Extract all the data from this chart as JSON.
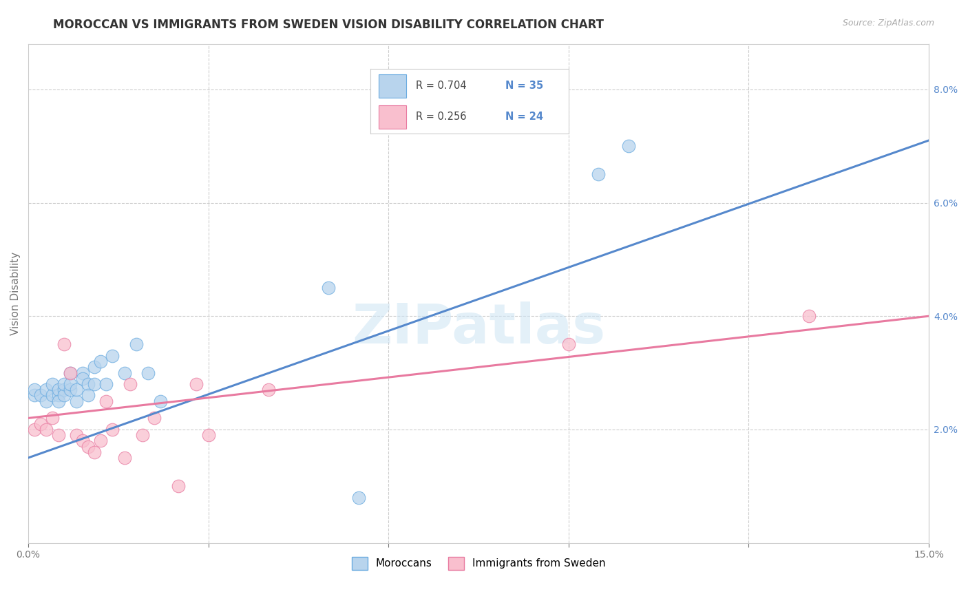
{
  "title": "MOROCCAN VS IMMIGRANTS FROM SWEDEN VISION DISABILITY CORRELATION CHART",
  "source": "Source: ZipAtlas.com",
  "ylabel": "Vision Disability",
  "xlim": [
    0.0,
    0.15
  ],
  "ylim": [
    0.0,
    0.088
  ],
  "moroccan_color": "#b8d4ed",
  "moroccan_edge": "#6aabe0",
  "sweden_color": "#f9bfce",
  "sweden_edge": "#e87aa0",
  "line_blue": "#5588cc",
  "line_pink": "#e87aa0",
  "tick_color_blue": "#5588cc",
  "legend_label_blue": "Moroccans",
  "legend_label_pink": "Immigrants from Sweden",
  "watermark": "ZIPatlas",
  "grid_color": "#cccccc",
  "background_color": "#ffffff",
  "title_fontsize": 12,
  "axis_label_fontsize": 11,
  "tick_fontsize": 10,
  "moroccan_x": [
    0.001,
    0.001,
    0.002,
    0.003,
    0.003,
    0.004,
    0.004,
    0.005,
    0.005,
    0.005,
    0.006,
    0.006,
    0.006,
    0.007,
    0.007,
    0.007,
    0.008,
    0.008,
    0.009,
    0.009,
    0.01,
    0.01,
    0.011,
    0.011,
    0.012,
    0.013,
    0.014,
    0.016,
    0.018,
    0.02,
    0.022,
    0.05,
    0.055,
    0.095,
    0.1
  ],
  "moroccan_y": [
    0.026,
    0.027,
    0.026,
    0.025,
    0.027,
    0.026,
    0.028,
    0.026,
    0.027,
    0.025,
    0.027,
    0.026,
    0.028,
    0.027,
    0.03,
    0.028,
    0.025,
    0.027,
    0.03,
    0.029,
    0.028,
    0.026,
    0.031,
    0.028,
    0.032,
    0.028,
    0.033,
    0.03,
    0.035,
    0.03,
    0.025,
    0.045,
    0.008,
    0.065,
    0.07
  ],
  "sweden_x": [
    0.001,
    0.002,
    0.003,
    0.004,
    0.005,
    0.006,
    0.007,
    0.008,
    0.009,
    0.01,
    0.011,
    0.012,
    0.013,
    0.014,
    0.016,
    0.017,
    0.019,
    0.021,
    0.025,
    0.028,
    0.03,
    0.04,
    0.09,
    0.13
  ],
  "sweden_y": [
    0.02,
    0.021,
    0.02,
    0.022,
    0.019,
    0.035,
    0.03,
    0.019,
    0.018,
    0.017,
    0.016,
    0.018,
    0.025,
    0.02,
    0.015,
    0.028,
    0.019,
    0.022,
    0.01,
    0.028,
    0.019,
    0.027,
    0.035,
    0.04
  ],
  "blue_line_x": [
    0.0,
    0.15
  ],
  "blue_line_y": [
    0.015,
    0.071
  ],
  "pink_line_x": [
    0.0,
    0.15
  ],
  "pink_line_y": [
    0.022,
    0.04
  ]
}
